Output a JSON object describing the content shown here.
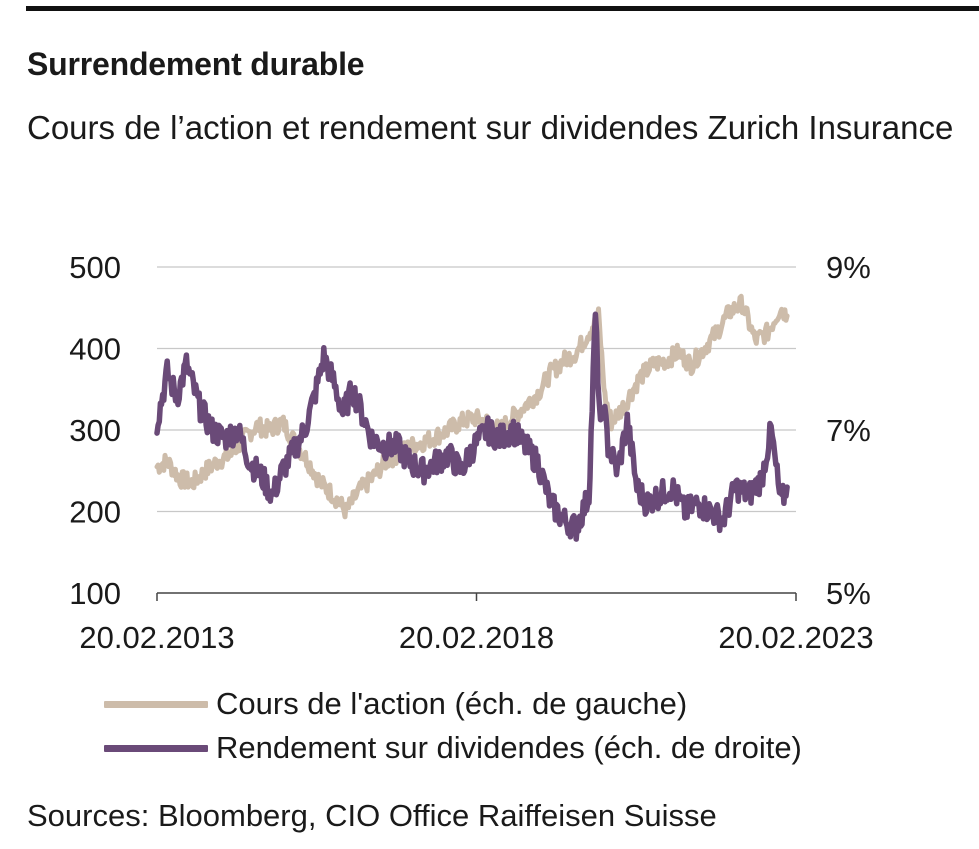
{
  "header": {
    "title": "Surrendement durable",
    "subtitle": "Cours de l’action et rendement sur dividendes Zurich Insurance"
  },
  "source": "Sources: Bloomberg, CIO Office Raiffeisen Suisse",
  "colors": {
    "share_price": "#cdbcaa",
    "dividend_yield": "#6a4a78",
    "grid": "#c8c8c8",
    "axis": "#444444"
  },
  "chart_data": {
    "type": "line",
    "x_ticks": [
      "20.02.2013",
      "20.02.2018",
      "20.02.2023"
    ],
    "xlim": [
      "2013-02-20",
      "2023-02-20"
    ],
    "y_left": {
      "ticks": [
        "500",
        "400",
        "300",
        "200",
        "100"
      ],
      "ylim": [
        100,
        500
      ]
    },
    "y_right": {
      "ticks": [
        "9%",
        "7%",
        "5%"
      ],
      "ylim": [
        5,
        9
      ],
      "unit": "%"
    },
    "grid": true,
    "legend_position": "bottom",
    "series": [
      {
        "name": "Cours de l'action (éch. de gauche)",
        "axis": "left",
        "x": [
          2013.14,
          2013.3,
          2013.5,
          2013.7,
          2013.9,
          2014.1,
          2014.3,
          2014.5,
          2014.7,
          2014.9,
          2015.1,
          2015.3,
          2015.5,
          2015.7,
          2015.9,
          2016.1,
          2016.3,
          2016.5,
          2016.7,
          2016.9,
          2017.1,
          2017.3,
          2017.5,
          2017.7,
          2017.9,
          2018.1,
          2018.3,
          2018.5,
          2018.7,
          2018.9,
          2019.1,
          2019.3,
          2019.5,
          2019.7,
          2019.9,
          2020.05,
          2020.15,
          2020.25,
          2020.45,
          2020.7,
          2020.9,
          2021.1,
          2021.3,
          2021.5,
          2021.7,
          2021.9,
          2022.1,
          2022.3,
          2022.5,
          2022.7,
          2022.9,
          2023.0
        ],
        "values": [
          255,
          262,
          240,
          235,
          250,
          262,
          270,
          290,
          305,
          300,
          310,
          285,
          262,
          235,
          220,
          200,
          225,
          240,
          260,
          270,
          280,
          285,
          292,
          300,
          310,
          315,
          310,
          300,
          315,
          330,
          345,
          370,
          385,
          395,
          420,
          440,
          340,
          310,
          330,
          365,
          380,
          385,
          395,
          380,
          400,
          420,
          445,
          455,
          410,
          420,
          450,
          440
        ]
      },
      {
        "name": "Rendement sur dividendes (éch. de droite)",
        "axis": "right",
        "x": [
          2013.14,
          2013.3,
          2013.45,
          2013.6,
          2013.8,
          2014.0,
          2014.2,
          2014.4,
          2014.6,
          2014.8,
          2014.95,
          2015.1,
          2015.25,
          2015.45,
          2015.6,
          2015.75,
          2015.9,
          2016.05,
          2016.2,
          2016.35,
          2016.5,
          2016.7,
          2016.9,
          2017.1,
          2017.3,
          2017.5,
          2017.7,
          2017.9,
          2018.1,
          2018.3,
          2018.5,
          2018.7,
          2018.9,
          2019.1,
          2019.3,
          2019.5,
          2019.7,
          2019.9,
          2020.0,
          2020.08,
          2020.13,
          2020.2,
          2020.35,
          2020.5,
          2020.65,
          2020.8,
          2021.0,
          2021.2,
          2021.4,
          2021.6,
          2021.8,
          2022.0,
          2022.2,
          2022.4,
          2022.6,
          2022.75,
          2022.9,
          2023.0
        ],
        "values": [
          7.1,
          7.7,
          7.4,
          7.8,
          7.3,
          7.0,
          6.9,
          7.0,
          6.6,
          6.4,
          6.2,
          6.5,
          6.7,
          7.0,
          7.4,
          7.9,
          7.6,
          7.2,
          7.5,
          7.2,
          6.9,
          6.8,
          6.8,
          6.6,
          6.5,
          6.6,
          6.7,
          6.5,
          6.8,
          7.0,
          6.9,
          7.0,
          6.8,
          6.6,
          6.1,
          5.9,
          5.8,
          6.2,
          8.4,
          7.0,
          7.3,
          6.8,
          6.5,
          7.1,
          6.3,
          6.1,
          6.2,
          6.3,
          6.0,
          6.1,
          6.0,
          5.9,
          6.3,
          6.2,
          6.4,
          7.0,
          6.1,
          6.3
        ]
      }
    ]
  }
}
